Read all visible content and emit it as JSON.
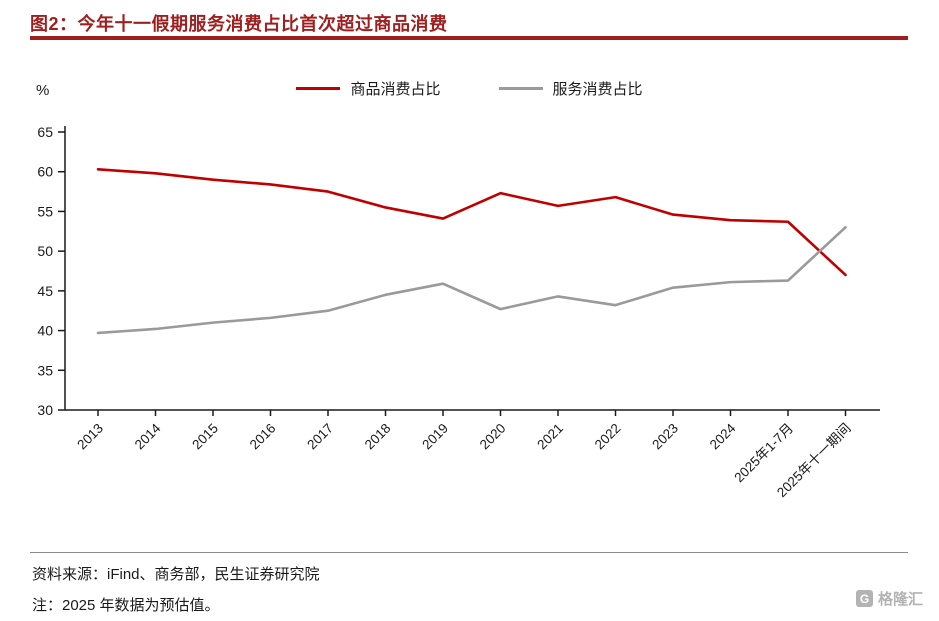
{
  "title": "图2：今年十一假期服务消费占比首次超过商品消费",
  "chart_data": {
    "type": "line",
    "categories": [
      "2013",
      "2014",
      "2015",
      "2016",
      "2017",
      "2018",
      "2019",
      "2020",
      "2021",
      "2022",
      "2023",
      "2024",
      "2025年1-7月",
      "2025年十一期间"
    ],
    "series": [
      {
        "name": "商品消费占比",
        "color": "#c00000",
        "values": [
          60.3,
          59.8,
          59.0,
          58.4,
          57.5,
          55.5,
          54.1,
          57.3,
          55.7,
          56.8,
          54.6,
          53.9,
          53.7,
          47.0
        ]
      },
      {
        "name": "服务消费占比",
        "color": "#9a9a9a",
        "values": [
          39.7,
          40.2,
          41.0,
          41.6,
          42.5,
          44.5,
          45.9,
          42.7,
          44.3,
          43.2,
          45.4,
          46.1,
          46.3,
          53.0
        ]
      }
    ],
    "title": "",
    "xlabel": "",
    "ylabel": "%",
    "ylim": [
      30,
      65
    ],
    "yticks": [
      30,
      35,
      40,
      45,
      50,
      55,
      60,
      65
    ],
    "grid": false,
    "legend_position": "top"
  },
  "footer": {
    "source": "资料来源：iFind、商务部，民生证券研究院",
    "note": "注：2025 年数据为预估值。",
    "watermark": "格隆汇"
  },
  "colors": {
    "title_red": "#9e1f1f",
    "goods_line": "#c00000",
    "service_line": "#9a9a9a",
    "axis": "#1a1a1a"
  }
}
